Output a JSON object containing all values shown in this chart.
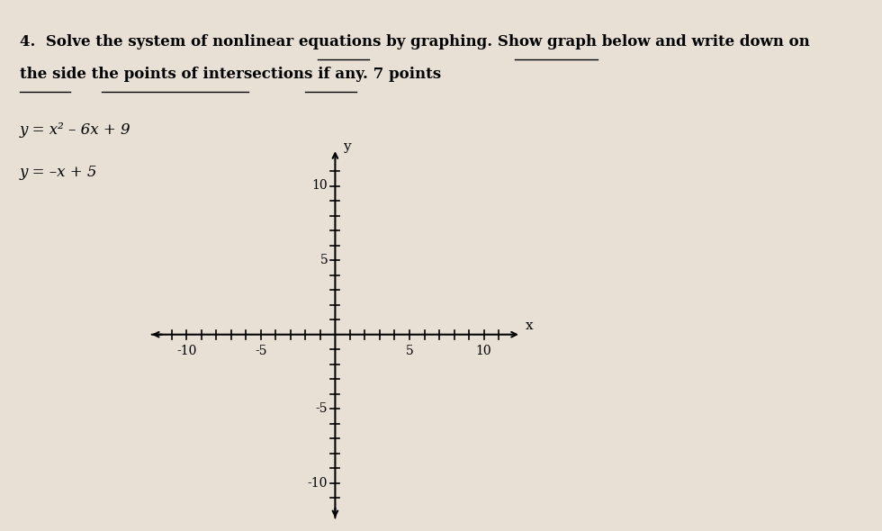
{
  "background_color": "#e8e0d5",
  "title_number": "4.",
  "title_text_normal": "Solve the system of nonlinear equations by ",
  "title_text_bold_graphing": "graphing",
  "title_text_bold_2": ". Show ",
  "title_text_bold_graph": "graph",
  "title_text_bold_3": " below and ",
  "title_underline_part1": "write down on\nthe side",
  "title_text_bold_4": " the ",
  "title_underline_part2": "points of intersections",
  "title_text_bold_5": " if any. ",
  "title_underline_part3": "7 points",
  "eq1": "y = x² – 6x + 9",
  "eq2": "y = –x + 5",
  "xlim": [
    -12.5,
    12.5
  ],
  "ylim": [
    -12.5,
    12.5
  ],
  "xtick_labels": [
    -10,
    -5,
    5,
    10
  ],
  "ytick_labels": [
    -10,
    -5,
    5,
    10
  ],
  "x_label": "x",
  "y_label": "y",
  "tick_range_min": -11,
  "tick_range_max": 11,
  "tick_size": 0.3,
  "axis_lw": 1.5,
  "tick_lw": 1.2,
  "label_fontsize": 11,
  "tick_label_fontsize": 10,
  "text_fontsize": 12,
  "title_fontsize": 12
}
